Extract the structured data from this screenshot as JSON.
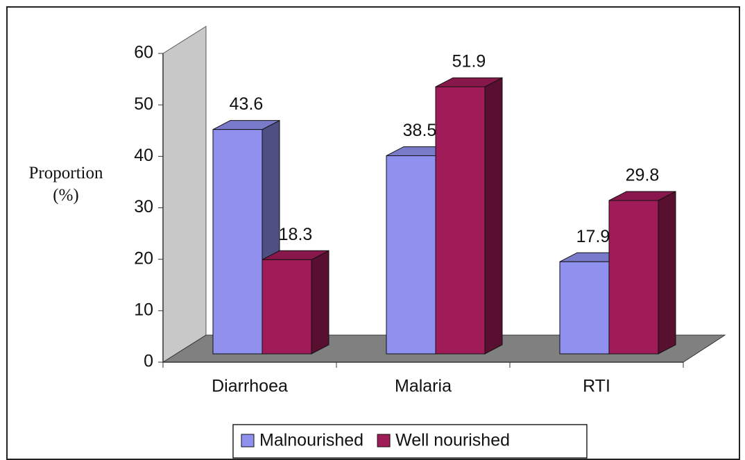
{
  "chart_data": {
    "type": "bar3d",
    "y_label": "Proportion (%)",
    "categories": [
      "Diarrhoea",
      "Malaria",
      "RTI"
    ],
    "series": [
      {
        "name": "Malnourished",
        "color": "#9090ee",
        "values": [
          43.6,
          38.5,
          17.9
        ]
      },
      {
        "name": "Well nourished",
        "color": "#a01c58",
        "values": [
          18.3,
          51.9,
          29.8
        ]
      }
    ],
    "ylim": [
      0,
      60
    ],
    "yticks": [
      0,
      10,
      20,
      30,
      40,
      50,
      60
    ],
    "legend": "bottom"
  }
}
